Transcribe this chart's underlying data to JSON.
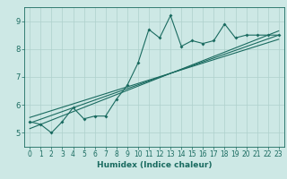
{
  "xlabel": "Humidex (Indice chaleur)",
  "ylabel": "",
  "xlim": [
    -0.5,
    23.5
  ],
  "ylim": [
    4.5,
    9.5
  ],
  "xticks": [
    0,
    1,
    2,
    3,
    4,
    5,
    6,
    7,
    8,
    9,
    10,
    11,
    12,
    13,
    14,
    15,
    16,
    17,
    18,
    19,
    20,
    21,
    22,
    23
  ],
  "yticks": [
    5,
    6,
    7,
    8,
    9
  ],
  "bg_color": "#cde8e5",
  "line_color": "#1a6b60",
  "grid_color": "#aed0cc",
  "series1_x": [
    0,
    1,
    2,
    3,
    4,
    5,
    6,
    7,
    8,
    9,
    10,
    11,
    12,
    13,
    14,
    15,
    16,
    17,
    18,
    19,
    20,
    21,
    22,
    23
  ],
  "series1_y": [
    5.4,
    5.3,
    5.0,
    5.4,
    5.9,
    5.5,
    5.6,
    5.6,
    6.2,
    6.7,
    7.5,
    8.7,
    8.4,
    9.2,
    8.1,
    8.3,
    8.2,
    8.3,
    8.9,
    8.4,
    8.5,
    8.5,
    8.5,
    8.5
  ],
  "trend1_x": [
    0,
    23
  ],
  "trend1_y": [
    5.35,
    8.5
  ],
  "trend2_x": [
    0,
    23
  ],
  "trend2_y": [
    5.15,
    8.65
  ],
  "trend3_x": [
    0,
    23
  ],
  "trend3_y": [
    5.55,
    8.35
  ]
}
